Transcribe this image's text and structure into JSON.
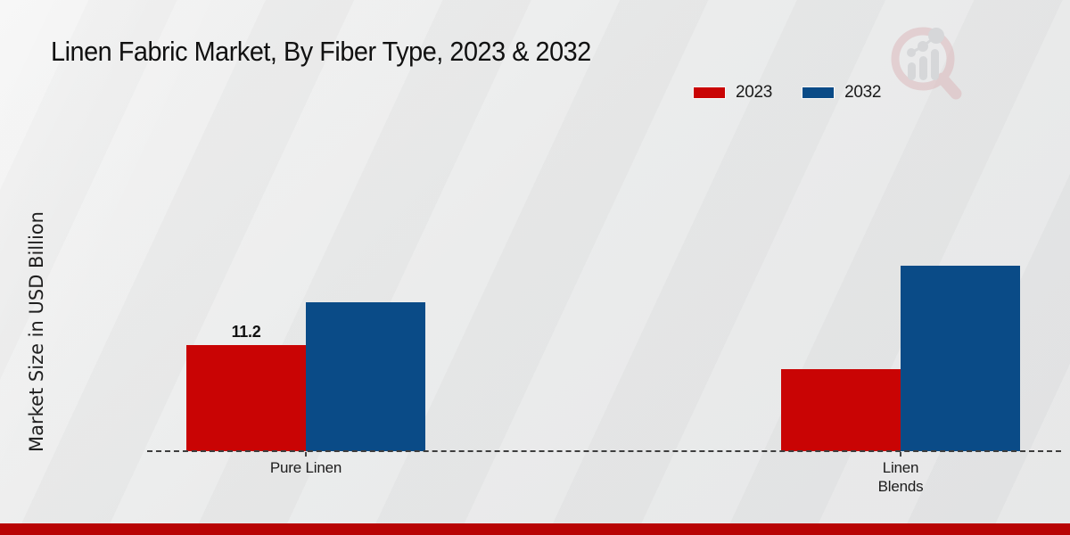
{
  "title": "Linen Fabric Market, By Fiber Type, 2023 & 2032",
  "ylabel": "Market Size in USD Billion",
  "legend": {
    "items": [
      {
        "label": "2023",
        "color": "#c90404"
      },
      {
        "label": "2032",
        "color": "#0a4b87"
      }
    ]
  },
  "chart_data": {
    "type": "bar",
    "title": "Linen Fabric Market, By Fiber Type, 2023 & 2032",
    "xlabel": "",
    "ylabel": "Market Size in USD Billion",
    "categories": [
      "Pure Linen",
      "Linen Blends"
    ],
    "category_label_lines": [
      [
        "Pure Linen"
      ],
      [
        "Linen",
        "Blends"
      ]
    ],
    "series": [
      {
        "name": "2023",
        "color": "#c90404",
        "values": [
          11.2,
          8.7
        ],
        "value_labels": [
          "11.2",
          ""
        ]
      },
      {
        "name": "2032",
        "color": "#0a4b87",
        "values": [
          15.7,
          19.6
        ],
        "value_labels": [
          "",
          ""
        ]
      }
    ],
    "ylim": [
      0,
      20
    ],
    "grid": false,
    "legend_position": "top-right",
    "baseline_style": "dashed"
  },
  "watermark": {
    "icon": "magnifier-bar-chart-logo"
  },
  "footer": {
    "band_color": "#b80404"
  }
}
